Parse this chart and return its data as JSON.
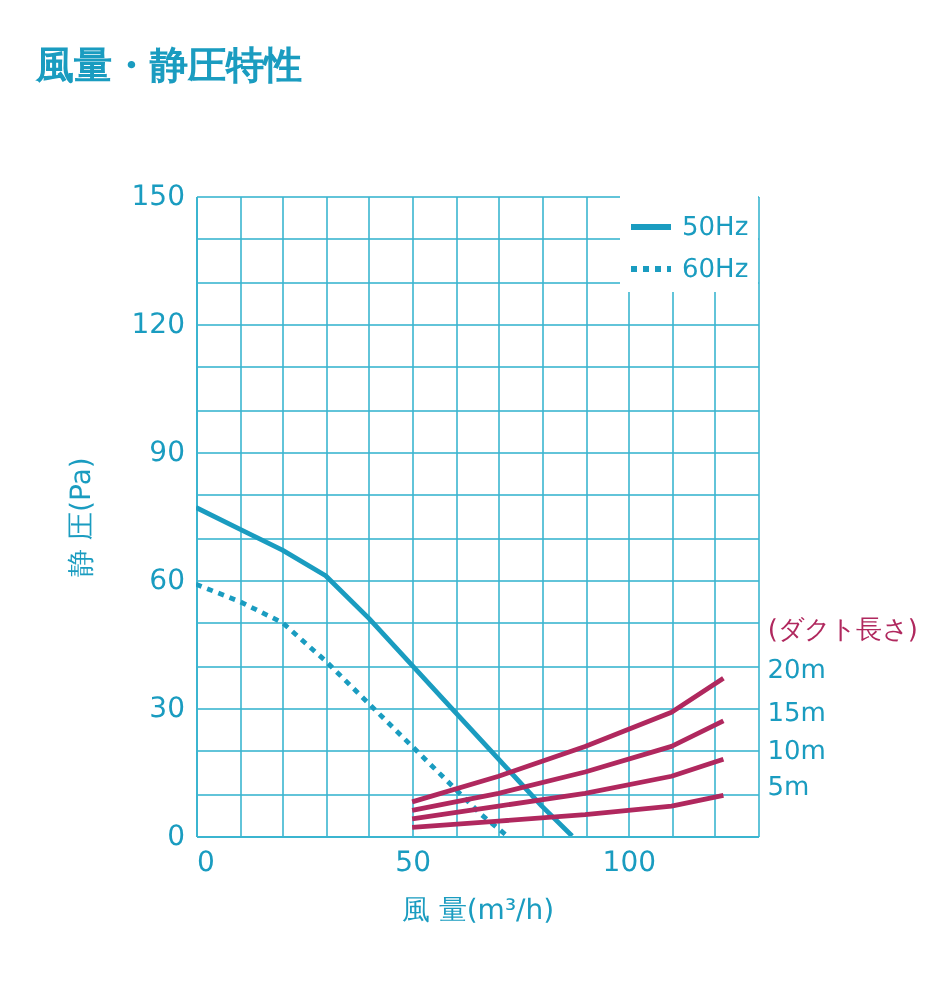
{
  "chart_data": {
    "type": "line",
    "title": "風量・静圧特性",
    "xlabel": "風 量(m³/h)",
    "ylabel": "静 圧(Pa)",
    "annotations": [
      "(ダクト長さ)"
    ],
    "xlim": [
      0,
      130
    ],
    "ylim": [
      0,
      150
    ],
    "xticks": [
      0,
      {
        "value": 10,
        "label": null
      },
      {
        "value": 20,
        "label": null
      },
      {
        "value": 30,
        "label": null
      },
      {
        "value": 40,
        "label": null
      },
      50,
      {
        "value": 60,
        "label": null
      },
      {
        "value": 70,
        "label": null
      },
      {
        "value": 80,
        "label": null
      },
      {
        "value": 90,
        "label": null
      },
      100,
      {
        "value": 110,
        "label": null
      },
      {
        "value": 120,
        "label": null
      },
      {
        "value": 130,
        "label": null
      }
    ],
    "yticks": [
      0,
      {
        "value": 10,
        "label": null
      },
      {
        "value": 20,
        "label": null
      },
      30,
      {
        "value": 40,
        "label": null
      },
      {
        "value": 50,
        "label": null
      },
      60,
      {
        "value": 70,
        "label": null
      },
      {
        "value": 80,
        "label": null
      },
      90,
      {
        "value": 100,
        "label": null
      },
      {
        "value": 110,
        "label": null
      },
      120,
      {
        "value": 130,
        "label": null
      },
      {
        "value": 140,
        "label": null
      },
      150
    ],
    "grid": true,
    "legend": "top right",
    "marker": "none",
    "line_style": "solid",
    "series": [
      {
        "name": "50Hz",
        "color": "#1a9cc0",
        "line_style": "solid",
        "x": [
          0,
          10,
          20,
          30,
          40,
          50,
          60,
          70,
          80,
          87
        ],
        "values": [
          77,
          72,
          67,
          61,
          51,
          40,
          29,
          18,
          7,
          0
        ]
      },
      {
        "name": "60Hz",
        "color": "#1a9cc0",
        "line_style": "dotted",
        "x": [
          0,
          10,
          20,
          30,
          40,
          50,
          60,
          66,
          72
        ],
        "values": [
          59,
          55,
          50,
          41,
          31,
          21,
          11,
          5,
          0
        ]
      },
      {
        "name": "20m",
        "color": "#b0285e",
        "x": [
          50,
          70,
          90,
          110,
          122
        ],
        "values": [
          8,
          14,
          21,
          29,
          37
        ]
      },
      {
        "name": "15m",
        "color": "#b0285e",
        "x": [
          50,
          70,
          90,
          110,
          122
        ],
        "values": [
          6,
          10,
          15,
          21,
          27
        ]
      },
      {
        "name": "10m",
        "color": "#b0285e",
        "x": [
          50,
          70,
          90,
          110,
          122
        ],
        "values": [
          4,
          7,
          10,
          14,
          18
        ]
      },
      {
        "name": "5m",
        "color": "#b0285e",
        "x": [
          50,
          70,
          90,
          110,
          122
        ],
        "values": [
          2,
          3.5,
          5,
          7,
          9.5
        ]
      }
    ]
  }
}
